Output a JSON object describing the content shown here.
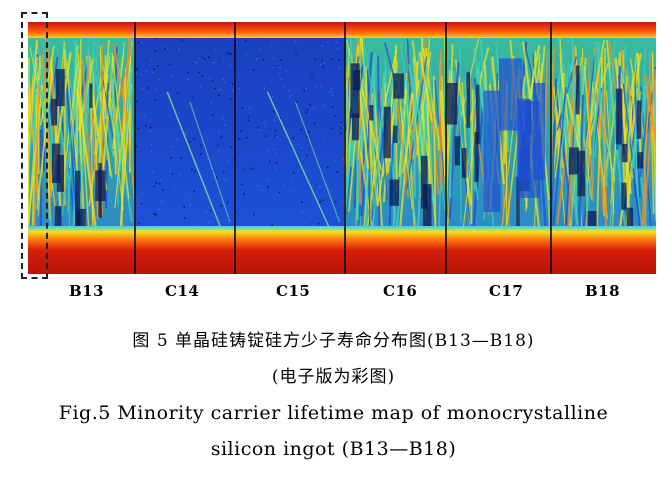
{
  "figure": {
    "segments": [
      {
        "label": "B13",
        "type": "multi"
      },
      {
        "label": "C14",
        "type": "mono"
      },
      {
        "label": "C15",
        "type": "mono"
      },
      {
        "label": "C16",
        "type": "multi"
      },
      {
        "label": "C17",
        "type": "mixed"
      },
      {
        "label": "B18",
        "type": "multi"
      }
    ],
    "colors": {
      "high": "#d61f0a",
      "upper": "#ff8a1a",
      "mid": "#f2e21a",
      "lowmid": "#3fd0b8",
      "low": "#1e4fd8",
      "deep": "#0a1a5a"
    }
  },
  "caption": {
    "cn_line1": "图 5   单晶硅铸锭硅方少子寿命分布图(B13—B18)",
    "cn_line2": "(电子版为彩图)",
    "en_line1": "Fig.5   Minority carrier lifetime map of monocrystalline",
    "en_line2": "silicon ingot (B13—B18)"
  }
}
